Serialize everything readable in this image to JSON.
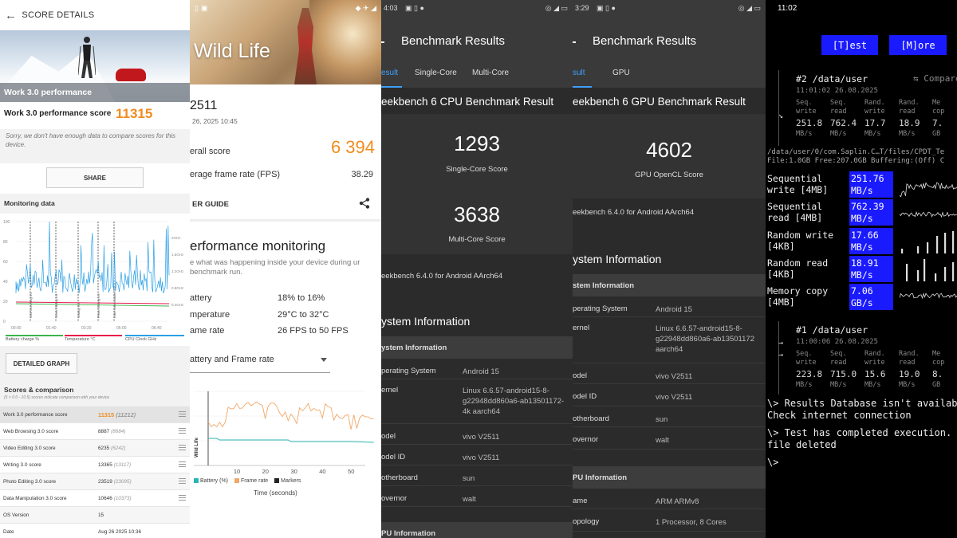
{
  "panel1": {
    "title": "SCORE DETAILS",
    "hero_caption": "Work 3.0 performance",
    "score_label": "Work 3.0 performance score",
    "score_value": "11315",
    "sorry_text": "Sorry, we don't have enough data to compare scores for this device.",
    "share_label": "SHARE",
    "monitoring_title": "Monitoring data",
    "graph_y_left": [
      "100",
      "80",
      "60",
      "40",
      "20",
      "0"
    ],
    "graph_y_right": [
      "2GHz",
      "1.6GHz",
      "1.2GHz",
      "0.8GHz",
      "0.4GHz"
    ],
    "graph_x": [
      "00:00",
      "01:40",
      "03:20",
      "05:00",
      "06:40"
    ],
    "graph_markers": [
      "Web Browsing 3.0",
      "Video Editing 3.0",
      "Writing 3.0",
      "Photo Editing 3.0",
      "Data Manipulation 3.0"
    ],
    "legend": [
      "Battery charge %",
      "Temperature °C",
      "CPU Clock GHz"
    ],
    "legend_colors": [
      "#3cb44b",
      "#e6194b",
      "#2aa0e6"
    ],
    "detailed_graph_label": "DETAILED GRAPH",
    "scores_title": "Scores & comparison",
    "scores_note": "(5 × 0.0 - 10.5) scores indicate comparison with your device",
    "rows": [
      {
        "label": "Work 3.0 performance score",
        "value": "11315",
        "sub": "(11212)"
      },
      {
        "label": "Web Browsing 3.0 score",
        "value": "8887",
        "sub": "(8684)"
      },
      {
        "label": "Video Editing 3.0 score",
        "value": "6235",
        "sub": "(6242)"
      },
      {
        "label": "Writing 3.0 score",
        "value": "13365",
        "sub": "(13117)"
      },
      {
        "label": "Photo Editing 3.0 score",
        "value": "23519",
        "sub": "(23095)"
      },
      {
        "label": "Data Manipulation 3.0 score",
        "value": "10646",
        "sub": "(10373)"
      },
      {
        "label": "OS Version",
        "value": "15",
        "sub": ""
      },
      {
        "label": "Date",
        "value": "Aug 26 2025 10:36",
        "sub": ""
      }
    ]
  },
  "panel2": {
    "hero_title": "Wild Life",
    "device_name": "2511",
    "date": "26, 2025 10:45",
    "overall_label": "erall score",
    "overall_value": "6 394",
    "framerate_label": "erage frame rate (FPS)",
    "framerate_value": "38.29",
    "guide_label": "ER GUIDE",
    "pm_title": "erformance monitoring",
    "pm_desc": "e what was happening inside your device during ur benchmark run.",
    "metrics": [
      {
        "k": "attery",
        "v": "18% to 16%"
      },
      {
        "k": "mperature",
        "v": "29°C to 32°C"
      },
      {
        "k": "ame rate",
        "v": "26 FPS to 50 FPS"
      }
    ],
    "dropdown_value": "attery and Frame rate",
    "chart_x_ticks": [
      "10",
      "20",
      "30",
      "40",
      "50"
    ],
    "chart_side_label": "Wild Life",
    "chart_legend": [
      "Battery (%)",
      "Frame rate",
      "Markers"
    ],
    "chart_legend_colors": [
      "#2ab5b5",
      "#f0a868",
      "#222222"
    ],
    "chart_xlabel": "Time (seconds)"
  },
  "panel3": {
    "status_time": "4:03",
    "title": "Benchmark Results",
    "tabs": [
      "esult",
      "Single-Core",
      "Multi-Core"
    ],
    "result_title": "eekbench 6 CPU Benchmark Result",
    "single_score": "1293",
    "single_label": "Single-Core Score",
    "multi_score": "3638",
    "multi_label": "Multi-Core Score",
    "version": "eekbench 6.4.0 for Android AArch64",
    "sys_title": "ystem Information",
    "sys_header": "ystem Information",
    "kv": [
      {
        "k": "perating System",
        "v": "Android 15"
      },
      {
        "k": "ernel",
        "v": "Linux 6.6.57-android15-8-g22948dd860a6-ab13501172-4k aarch64"
      },
      {
        "k": "odel",
        "v": "vivo V2511"
      },
      {
        "k": "odel ID",
        "v": "vivo V2511"
      },
      {
        "k": "otherboard",
        "v": "sun"
      },
      {
        "k": "overnor",
        "v": "walt"
      }
    ],
    "cpu_header": "PU Information"
  },
  "panel4": {
    "status_time": "3:29",
    "title": "Benchmark Results",
    "tabs": [
      "sult",
      "GPU"
    ],
    "result_title": "eekbench 6 GPU Benchmark Result",
    "score": "4602",
    "score_label": "GPU OpenCL Score",
    "version": "eekbench 6.4.0 for Android AArch64",
    "sys_title": "ystem Information",
    "sys_header": "stem Information",
    "kv": [
      {
        "k": "perating System",
        "v": "Android 15"
      },
      {
        "k": "ernel",
        "v": "Linux 6.6.57-android15-8-g22948dd860a6-ab13501172 aarch64"
      },
      {
        "k": "odel",
        "v": "vivo V2511"
      },
      {
        "k": "odel ID",
        "v": "vivo V2511"
      },
      {
        "k": "otherboard",
        "v": "sun"
      },
      {
        "k": "overnor",
        "v": "walt"
      }
    ],
    "cpu_header": "PU Information",
    "cpu_kv": [
      {
        "k": "ame",
        "v": "ARM ARMv8"
      },
      {
        "k": "opology",
        "v": "1 Processor, 8 Cores"
      }
    ]
  },
  "panel5": {
    "time": "11:02",
    "btn_test": "[T]est",
    "btn_more": "[M]ore",
    "run2": {
      "title": "#2 /data/user",
      "compare": "⇆ Compare",
      "timestamp": "11:01:02 26.08.2025",
      "cols": [
        {
          "h": "Seq.\nwrite",
          "v": "251.8",
          "u": "MB/s"
        },
        {
          "h": "Seq.\nread",
          "v": "762.4",
          "u": "MB/s"
        },
        {
          "h": "Rand.\nwrite",
          "v": "17.7",
          "u": "MB/s"
        },
        {
          "h": "Rand.\nread",
          "v": "18.9",
          "u": "MB/s"
        },
        {
          "h": "Me\ncop",
          "v": "7.",
          "u": "GB"
        }
      ]
    },
    "path_line1": "/data/user/0/com.Saplin.C…T/files/CPDT_Te",
    "path_line2": "File:1.0GB Free:207.0GB  Buffering:(Off) C",
    "tests": [
      {
        "name": "Sequential\nwrite [4MB]",
        "value": "251.76",
        "unit": "MB/s"
      },
      {
        "name": "Sequential\nread [4MB]",
        "value": "762.39",
        "unit": "MB/s"
      },
      {
        "name": "Random write\n[4KB]",
        "value": "17.66",
        "unit": "MB/s"
      },
      {
        "name": "Random read\n[4KB]",
        "value": "18.91",
        "unit": "MB/s"
      },
      {
        "name": "Memory copy\n[4MB]",
        "value": "7.06",
        "unit": "GB/s"
      }
    ],
    "run1": {
      "title": "#1 /data/user",
      "timestamp": "11:00:06 26.08.2025",
      "cols": [
        {
          "h": "Seq.\nwrite",
          "v": "223.8",
          "u": "MB/s"
        },
        {
          "h": "Seq.\nread",
          "v": "715.0",
          "u": "MB/s"
        },
        {
          "h": "Rand.\nwrite",
          "v": "15.6",
          "u": "MB/s"
        },
        {
          "h": "Rand.\nread",
          "v": "19.0",
          "u": "MB/s"
        },
        {
          "h": "Me\ncop",
          "v": "8.",
          "u": "GB"
        }
      ]
    },
    "msg1": "\\> Results Database isn't availab",
    "msg2": "Check internet connection",
    "msg3": "\\> Test has completed execution.",
    "msg4": "file deleted",
    "prompt": "\\>"
  }
}
